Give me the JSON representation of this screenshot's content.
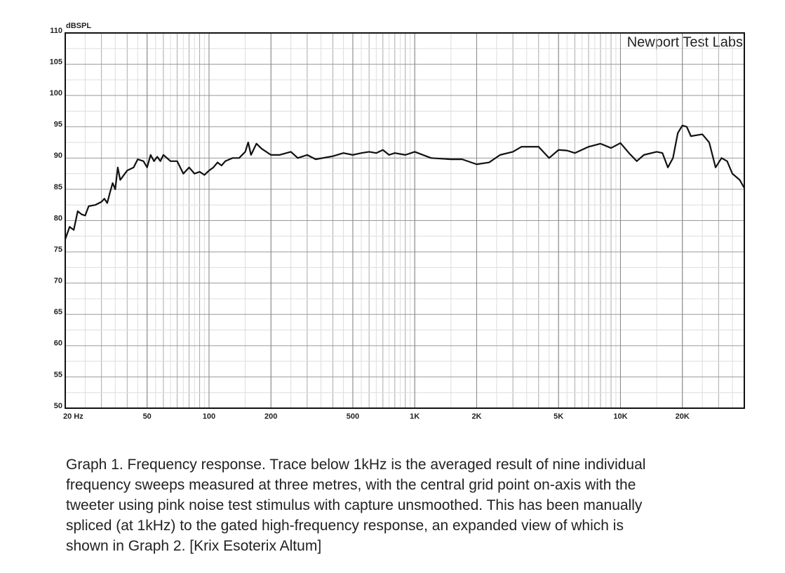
{
  "chart_data": {
    "type": "line",
    "y_label": "dBSPL",
    "annotation": "Newport Test Labs",
    "xscale": "log",
    "grid": true,
    "color": "#111111",
    "xlim": [
      20,
      40000
    ],
    "ylim": [
      50,
      110
    ],
    "xticks": [
      {
        "value": 20,
        "label": "20  Hz"
      },
      50,
      100,
      200,
      500,
      {
        "value": 1000,
        "label": "1K"
      },
      {
        "value": 2000,
        "label": "2K"
      },
      {
        "value": 5000,
        "label": "5K"
      },
      {
        "value": 10000,
        "label": "10K"
      },
      {
        "value": 20000,
        "label": "20K"
      }
    ],
    "yticks": [
      50,
      55,
      60,
      65,
      70,
      75,
      80,
      85,
      90,
      95,
      100,
      105,
      110
    ],
    "x": [
      20,
      21,
      22,
      23,
      24,
      25,
      26,
      28,
      30,
      31,
      32,
      33,
      34,
      35,
      36,
      37,
      38,
      40,
      43,
      45,
      48,
      50,
      52,
      54,
      56,
      58,
      60,
      65,
      70,
      75,
      80,
      85,
      90,
      95,
      100,
      105,
      110,
      115,
      120,
      130,
      140,
      150,
      155,
      160,
      170,
      180,
      200,
      220,
      250,
      270,
      300,
      330,
      400,
      450,
      500,
      550,
      600,
      650,
      700,
      750,
      800,
      900,
      1000,
      1200,
      1500,
      1700,
      2000,
      2300,
      2600,
      3000,
      3300,
      4000,
      4500,
      5000,
      5500,
      6000,
      7000,
      8000,
      9000,
      10000,
      11000,
      12000,
      13000,
      15000,
      16000,
      17000,
      18000,
      19000,
      20000,
      21000,
      22000,
      25000,
      27000,
      29000,
      31000,
      33000,
      35000,
      38000,
      40000
    ],
    "values": [
      77,
      79,
      78.5,
      81.5,
      81,
      80.8,
      82.3,
      82.5,
      83,
      83.5,
      82.8,
      84.5,
      86,
      85,
      88.5,
      86.5,
      87,
      88,
      88.5,
      89.8,
      89.5,
      88.5,
      90.5,
      89.5,
      90.2,
      89.5,
      90.5,
      89.5,
      89.5,
      87.5,
      88.5,
      87.5,
      87.8,
      87.3,
      88,
      88.5,
      89.3,
      88.8,
      89.5,
      90,
      90,
      91,
      92.5,
      90.5,
      92.3,
      91.5,
      90.5,
      90.5,
      91,
      90,
      90.5,
      89.8,
      90.3,
      90.8,
      90.5,
      90.8,
      91,
      90.8,
      91.3,
      90.5,
      90.8,
      90.5,
      91,
      90,
      89.8,
      89.8,
      89,
      89.3,
      90.5,
      91,
      91.8,
      91.8,
      90,
      91.3,
      91.2,
      90.8,
      91.8,
      92.3,
      91.6,
      92.4,
      90.8,
      89.5,
      90.5,
      91,
      90.8,
      88.5,
      90,
      94,
      95.2,
      95,
      93.5,
      93.8,
      92.5,
      88.5,
      90,
      89.5,
      87.5,
      86.5,
      85.2
    ]
  },
  "caption": [
    "Graph 1. Frequency response. Trace below 1kHz is the averaged result of nine individual",
    "frequency sweeps measured at three metres, with the central grid point on-axis with the",
    "tweeter using pink noise test stimulus with capture unsmoothed. This has been manually",
    "spliced (at 1kHz) to the gated high-frequency response, an expanded view of which is",
    "shown in Graph 2. [Krix Esoterix Altum]"
  ]
}
